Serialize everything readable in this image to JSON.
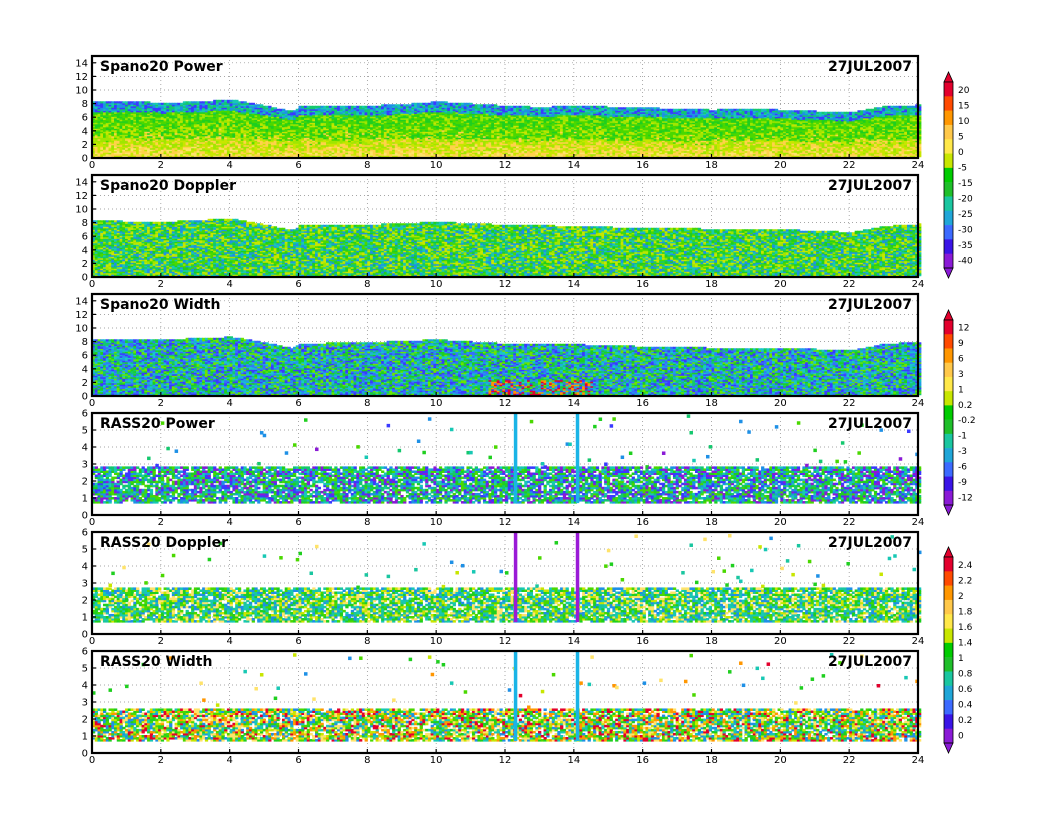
{
  "chart_data": [
    {
      "type": "heatmap",
      "title": "Spano20  Power",
      "date": "27JUL2007",
      "x_ticks": [
        "0",
        "2",
        "4",
        "6",
        "8",
        "10",
        "12",
        "14",
        "16",
        "18",
        "20",
        "22",
        "24"
      ],
      "y_ticks": [
        "0",
        "2",
        "4",
        "6",
        "8",
        "10",
        "12",
        "14"
      ],
      "xlim": [
        0,
        24
      ],
      "ylim": [
        0,
        15
      ],
      "colorbar": [
        "20",
        "15",
        "10",
        "5",
        "0",
        "-5",
        "-15",
        "-20",
        "-25",
        "-30",
        "-35",
        "-40"
      ],
      "top_profile": [
        [
          0,
          8.2
        ],
        [
          1,
          8.3
        ],
        [
          2,
          8.0
        ],
        [
          3,
          8.2
        ],
        [
          4,
          8.5
        ],
        [
          5,
          7.6
        ],
        [
          5.8,
          6.8
        ],
        [
          6,
          7.5
        ],
        [
          8,
          7.6
        ],
        [
          9,
          7.8
        ],
        [
          10,
          8.2
        ],
        [
          11,
          7.9
        ],
        [
          12,
          7.6
        ],
        [
          13,
          7.4
        ],
        [
          14,
          7.6
        ],
        [
          16,
          7.3
        ],
        [
          18,
          7.0
        ],
        [
          19,
          7.2
        ],
        [
          20,
          7.0
        ],
        [
          21,
          6.8
        ],
        [
          22,
          6.6
        ],
        [
          23,
          7.5
        ],
        [
          24,
          7.7
        ]
      ]
    },
    {
      "type": "heatmap",
      "title": "Spano20  Doppler",
      "date": "27JUL2007",
      "x_ticks": [
        "0",
        "2",
        "4",
        "6",
        "8",
        "10",
        "12",
        "14",
        "16",
        "18",
        "20",
        "22",
        "24"
      ],
      "y_ticks": [
        "0",
        "2",
        "4",
        "6",
        "8",
        "10",
        "12",
        "14"
      ],
      "xlim": [
        0,
        24
      ],
      "ylim": [
        0,
        15
      ],
      "top_profile": [
        [
          0,
          8.2
        ],
        [
          2,
          8.0
        ],
        [
          4,
          8.5
        ],
        [
          5,
          7.6
        ],
        [
          5.8,
          6.8
        ],
        [
          6,
          7.5
        ],
        [
          8,
          7.6
        ],
        [
          10,
          8.0
        ],
        [
          12,
          7.6
        ],
        [
          14,
          7.4
        ],
        [
          16,
          7.1
        ],
        [
          18,
          7.0
        ],
        [
          20,
          6.9
        ],
        [
          22,
          6.5
        ],
        [
          23,
          7.4
        ],
        [
          24,
          7.7
        ]
      ]
    },
    {
      "type": "heatmap",
      "title": "Spano20  Width",
      "date": "27JUL2007",
      "x_ticks": [
        "0",
        "2",
        "4",
        "6",
        "8",
        "10",
        "12",
        "14",
        "16",
        "18",
        "20",
        "22",
        "24"
      ],
      "y_ticks": [
        "0",
        "2",
        "4",
        "6",
        "8",
        "10",
        "12",
        "14"
      ],
      "xlim": [
        0,
        24
      ],
      "ylim": [
        0,
        15
      ],
      "colorbar": [
        "12",
        "9",
        "6",
        "3",
        "1",
        "0.2",
        "-0.2",
        "-1",
        "-3",
        "-6",
        "-9",
        "-12"
      ],
      "top_profile": [
        [
          0,
          8.3
        ],
        [
          2,
          8.2
        ],
        [
          4,
          8.6
        ],
        [
          5,
          7.8
        ],
        [
          5.8,
          6.9
        ],
        [
          6,
          7.6
        ],
        [
          8,
          7.8
        ],
        [
          10,
          8.2
        ],
        [
          12,
          7.6
        ],
        [
          14,
          7.5
        ],
        [
          16,
          7.2
        ],
        [
          18,
          7.0
        ],
        [
          20,
          7.0
        ],
        [
          22,
          6.6
        ],
        [
          23,
          7.6
        ],
        [
          24,
          7.8
        ]
      ]
    },
    {
      "type": "heatmap",
      "title": "RASS20  Power",
      "date": "27JUL2007",
      "x_ticks": [
        "0",
        "2",
        "4",
        "6",
        "8",
        "10",
        "12",
        "14",
        "16",
        "18",
        "20",
        "22",
        "24"
      ],
      "y_ticks": [
        "0",
        "1",
        "2",
        "3",
        "4",
        "5",
        "6"
      ],
      "xlim": [
        0,
        24
      ],
      "ylim": [
        0,
        6
      ],
      "spikes": [
        12.3,
        14.1
      ],
      "band": [
        0.7,
        2.8
      ]
    },
    {
      "type": "heatmap",
      "title": "RASS20  Doppler",
      "date": "27JUL2007",
      "x_ticks": [
        "0",
        "2",
        "4",
        "6",
        "8",
        "10",
        "12",
        "14",
        "16",
        "18",
        "20",
        "22",
        "24"
      ],
      "y_ticks": [
        "0",
        "1",
        "2",
        "3",
        "4",
        "5",
        "6"
      ],
      "xlim": [
        0,
        24
      ],
      "ylim": [
        0,
        6
      ],
      "colorbar": [
        "2.4",
        "2.2",
        "2",
        "1.8",
        "1.6",
        "1.4",
        "1",
        "0.8",
        "0.6",
        "0.4",
        "0.2",
        "0"
      ],
      "spikes": [
        12.3,
        14.1
      ],
      "band": [
        0.7,
        2.7
      ]
    },
    {
      "type": "heatmap",
      "title": "RASS20  Width",
      "date": "27JUL2007",
      "x_ticks": [
        "0",
        "2",
        "4",
        "6",
        "8",
        "10",
        "12",
        "14",
        "16",
        "18",
        "20",
        "22",
        "24"
      ],
      "y_ticks": [
        "0",
        "1",
        "2",
        "3",
        "4",
        "5",
        "6"
      ],
      "xlim": [
        0,
        24
      ],
      "ylim": [
        0,
        6
      ],
      "spikes": [
        12.3,
        14.1
      ],
      "band": [
        0.7,
        2.6
      ]
    }
  ],
  "palette": {
    "colorbar": [
      "#e3002d",
      "#ff4a00",
      "#ff9600",
      "#ffc84a",
      "#ffe84a",
      "#c8e600",
      "#00cc00",
      "#1fbf2a",
      "#1ac6a0",
      "#20a6d8",
      "#3c6aff",
      "#3a14e6",
      "#8a1ad6"
    ],
    "spano_power": [
      "#ffe36a",
      "#ffd24a",
      "#c8e600",
      "#a0e600",
      "#4ad800",
      "#1fcf1f",
      "#14c86e",
      "#18c8b4",
      "#1e90e6",
      "#3a3aff"
    ],
    "spano_doppler": [
      "#4ad800",
      "#1fcf1f",
      "#14c86e",
      "#18c8b4",
      "#a0e600",
      "#c8e600",
      "#1e90e6"
    ],
    "spano_width": [
      "#1ac6c8",
      "#1ea0e6",
      "#3a6aff",
      "#3a3aff",
      "#14c86e",
      "#1fcf1f",
      "#6ae600"
    ],
    "rass_power": [
      "#3a3aff",
      "#1e90e6",
      "#18c8b4",
      "#14c86e",
      "#1fcf1f",
      "#4ad800",
      "#8a1ad6"
    ],
    "rass_doppler": [
      "#18c8b4",
      "#1ac6a0",
      "#1fcf1f",
      "#4ad800",
      "#c8e600",
      "#ffe36a",
      "#1e90e6"
    ],
    "rass_width": [
      "#1fcf1f",
      "#4ad800",
      "#c8e600",
      "#ffe36a",
      "#ff9600",
      "#e3002d",
      "#18c8b4",
      "#1e90e6"
    ],
    "rass_power_spike": "#1ab4e6",
    "rass_doppler_spike": "#9a1ad6",
    "rass_width_spike": "#1ab4e6"
  }
}
